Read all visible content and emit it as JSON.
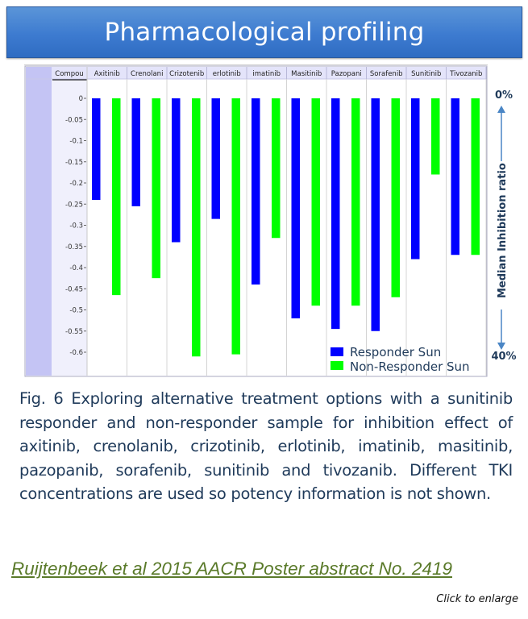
{
  "title": "Pharmacological profiling",
  "caption": "Fig. 6 Exploring alternative treatment options with a sunitinib responder and non-responder sample for inhibition effect of axitinib, crenolanib, crizotinib, erlotinib, imatinib, masitinib, pazopanib, sorafenib, sunitinib and tivozanib. Different TKI concentrations are used so potency information is not shown.",
  "citation": "Ruijtenbeek et al 2015 AACR Poster abstract No. 2419",
  "enlarge_label": "Click to enlarge",
  "colors": {
    "responder": "#0000ff",
    "non_responder": "#00ff00",
    "banner": "#3d7bd0",
    "caption_text": "#1f3a5a",
    "citation": "#5a7a2a",
    "annotation": "#1f3a5a",
    "arrow": "#4a86c5"
  },
  "chart_data": {
    "type": "bar",
    "title": "Pharmacological profiling",
    "header_first_column": "Compou",
    "column_headers": [
      "Axitinib",
      "Crenolani",
      "Crizotenib",
      "erlotinib",
      "imatinib",
      "Masitinib",
      "Pazopani",
      "Sorafenib",
      "Sunitinib",
      "Tivozanib"
    ],
    "categories": [
      "Axitinib",
      "Crenolanib",
      "Crizotinib",
      "Erlotinib",
      "Imatinib",
      "Masitinib",
      "Pazopanib",
      "Sorafenib",
      "Sunitinib",
      "Tivozanib"
    ],
    "series": [
      {
        "name": "Responder Sun",
        "color": "#0000ff",
        "values": [
          -0.24,
          -0.255,
          -0.34,
          -0.285,
          -0.44,
          -0.52,
          -0.545,
          -0.55,
          -0.38,
          -0.37
        ]
      },
      {
        "name": "Non-Responder Sun",
        "color": "#00ff00",
        "values": [
          -0.465,
          -0.425,
          -0.61,
          -0.605,
          -0.33,
          -0.49,
          -0.49,
          -0.47,
          -0.18,
          -0.37
        ]
      }
    ],
    "yticks": [
      "0",
      "-0.05",
      "-0.1",
      "-0.15",
      "-0.2",
      "-0.25",
      "-0.3",
      "-0.35",
      "-0.4",
      "-0.45",
      "-0.5",
      "-0.55",
      "-0.6"
    ],
    "ytick_values": [
      0,
      -0.05,
      -0.1,
      -0.15,
      -0.2,
      -0.25,
      -0.3,
      -0.35,
      -0.4,
      -0.45,
      -0.5,
      -0.55,
      -0.6
    ],
    "ylim": [
      -0.65,
      0
    ],
    "xlabel": "",
    "ylabel": "Median Inhibition ratio",
    "annotation_top": "0%",
    "annotation_bottom": "40%",
    "legend": {
      "placement": "bottom-right",
      "entries": [
        "Responder Sun",
        "Non-Responder Sun"
      ]
    },
    "grid": false
  }
}
